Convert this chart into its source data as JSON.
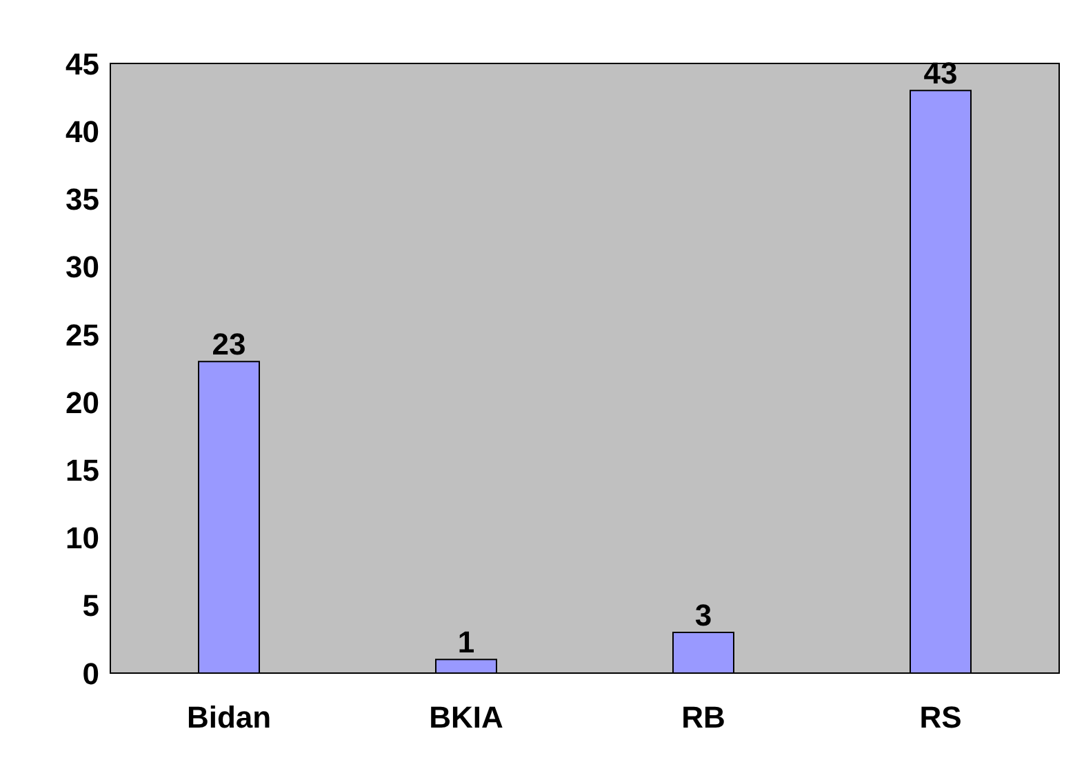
{
  "chart_data": {
    "type": "bar",
    "categories": [
      "Bidan",
      "BKIA",
      "RB",
      "RS"
    ],
    "values": [
      23,
      1,
      3,
      43
    ],
    "color": "#9999ff",
    "ylim": [
      0,
      45
    ],
    "yticks": [
      0,
      5,
      10,
      15,
      20,
      25,
      30,
      35,
      40,
      45
    ],
    "data_labels": true
  }
}
